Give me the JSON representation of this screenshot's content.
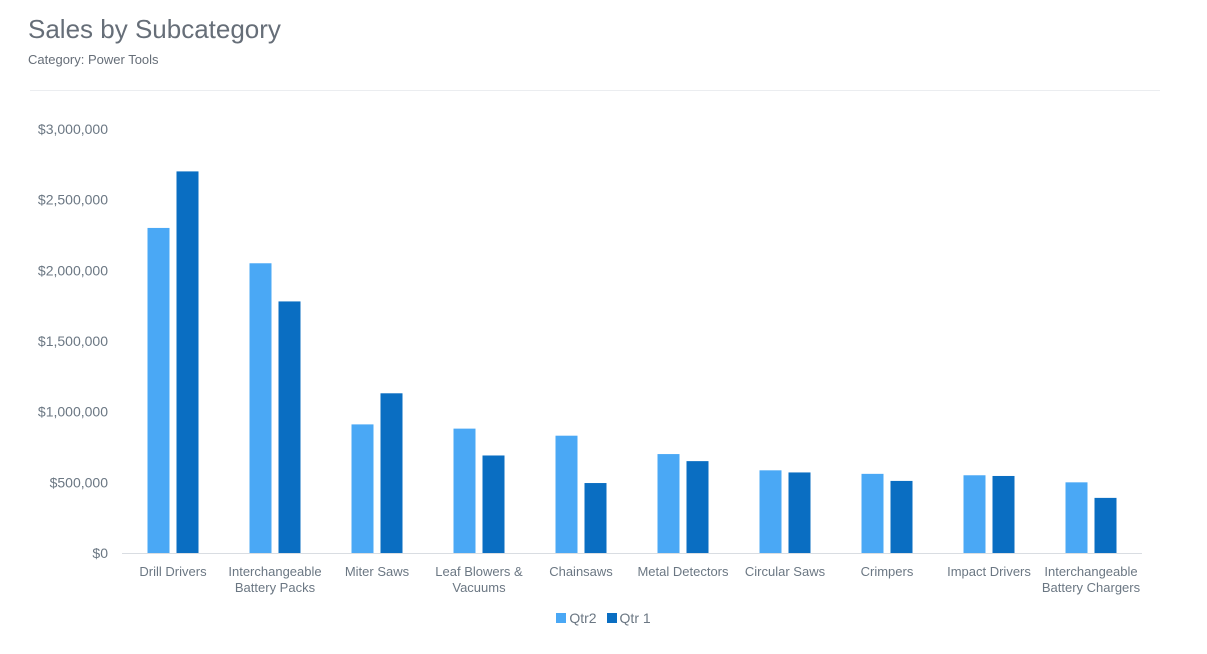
{
  "chart_data": {
    "type": "bar",
    "title": "Sales by Subcategory",
    "subtitle": "Category: Power Tools",
    "categories": [
      [
        "Drill Drivers"
      ],
      [
        "Interchangeable",
        "Battery Packs"
      ],
      [
        "Miter Saws"
      ],
      [
        "Leaf Blowers &",
        "Vacuums"
      ],
      [
        "Chainsaws"
      ],
      [
        "Metal Detectors"
      ],
      [
        "Circular Saws"
      ],
      [
        "Crimpers"
      ],
      [
        "Impact Drivers"
      ],
      [
        "Interchangeable",
        "Battery Chargers"
      ]
    ],
    "series": [
      {
        "name": "Qtr2",
        "color": "#4aa8f5",
        "values": [
          2300000,
          2050000,
          910000,
          880000,
          830000,
          700000,
          585000,
          560000,
          550000,
          500000
        ]
      },
      {
        "name": "Qtr 1",
        "color": "#0a6ec2",
        "values": [
          2700000,
          1780000,
          1130000,
          690000,
          495000,
          650000,
          570000,
          510000,
          545000,
          390000
        ]
      }
    ],
    "ylim": [
      0,
      3000000
    ],
    "yticks": [
      0,
      500000,
      1000000,
      1500000,
      2000000,
      2500000,
      3000000
    ],
    "ytick_labels": [
      "$0",
      "$500,000",
      "$1,000,000",
      "$1,500,000",
      "$2,000,000",
      "$2,500,000",
      "$3,000,000"
    ],
    "grid": false,
    "legend_position": "bottom-center"
  }
}
